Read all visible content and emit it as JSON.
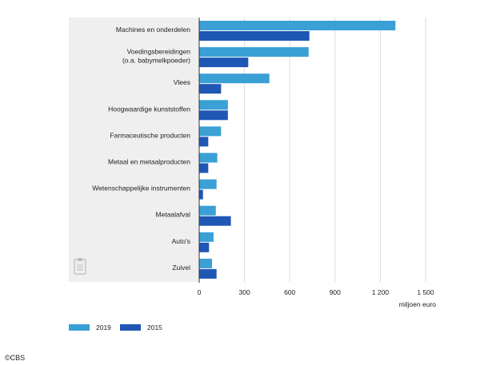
{
  "chart_data": {
    "type": "bar",
    "orientation": "horizontal",
    "categories": [
      [
        "Machines en onderdelen"
      ],
      [
        "Voedingsbereidingen",
        "(o.a. babymelkpoeder)"
      ],
      [
        "Vlees"
      ],
      [
        "Hoogwaardige kunststoffen"
      ],
      [
        "Farmaceutische producten"
      ],
      [
        "Metaal en metaalproducten"
      ],
      [
        "Wetenschappelijke instrumenten"
      ],
      [
        "Metaalafval"
      ],
      [
        "Auto's"
      ],
      [
        "Zuivel"
      ]
    ],
    "series": [
      {
        "name": "2019",
        "color": "#3aa0d5",
        "values": [
          1300,
          725,
          465,
          190,
          145,
          120,
          115,
          110,
          95,
          85
        ]
      },
      {
        "name": "2015",
        "color": "#1f57b5",
        "values": [
          730,
          325,
          145,
          190,
          60,
          60,
          25,
          210,
          65,
          115
        ]
      }
    ],
    "x_ticks": [
      0,
      300,
      600,
      900,
      1200,
      1500
    ],
    "x_tick_labels": [
      "0",
      "300",
      "600",
      "900",
      "1 200",
      "1 500"
    ],
    "xlim": [
      0,
      1500
    ],
    "xlabel": "miljoen euro",
    "grid": true,
    "legend_position": "bottom-left"
  },
  "footer": {
    "copyright": "©CBS"
  },
  "colors": {
    "panel_bg": "#efefef",
    "grid": "#dddddd",
    "axis": "#333333"
  },
  "icons": {
    "panel_corner": "clipboard-icon"
  }
}
